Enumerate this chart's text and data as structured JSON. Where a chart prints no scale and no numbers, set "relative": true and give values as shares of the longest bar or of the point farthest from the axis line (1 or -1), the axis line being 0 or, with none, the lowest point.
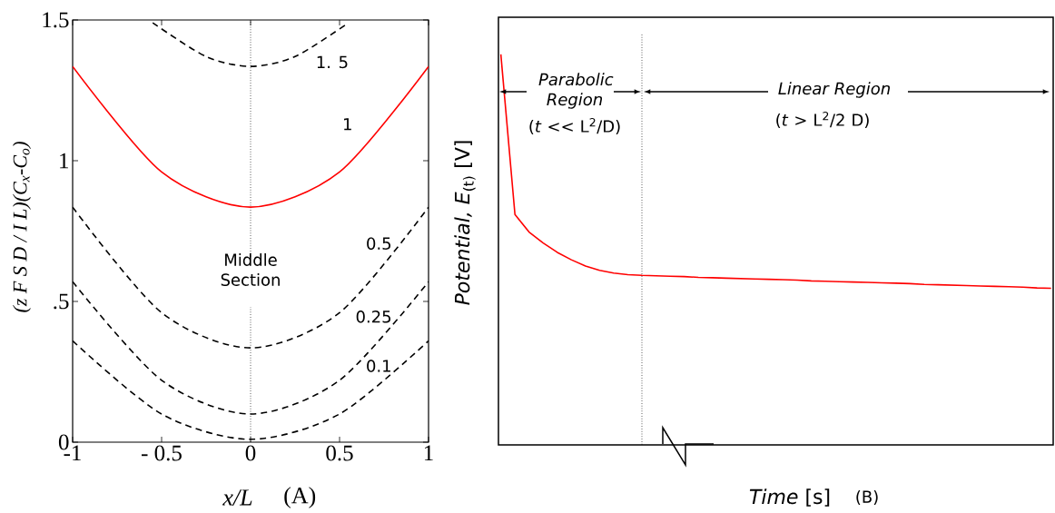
{
  "chart_data": [
    {
      "type": "line",
      "xlabel": "x/L",
      "ylabel": "(z F S D / I L)(C$_{x}$-C$_{o}$)",
      "x": [
        -1,
        -0.5,
        0,
        0.5,
        1
      ],
      "xlim": [
        -1,
        1
      ],
      "ylim": [
        0,
        1.5
      ],
      "xticks": [
        -1,
        {
          "value": -0.5,
          "label": "- 0.5"
        },
        0,
        0.5,
        1
      ],
      "yticks": [
        0,
        {
          "value": 0.5,
          "label": ".5"
        },
        1,
        1.5
      ],
      "series": [
        {
          "name": "1. 5",
          "color": "#000000",
          "line_style": "dashed",
          "x": [
            -0.55,
            -0.25,
            0,
            0.25,
            0.55
          ],
          "values": [
            1.49,
            1.37,
            1.335,
            1.37,
            1.49
          ]
        },
        {
          "name": "1",
          "color": "#ff0000",
          "line_style": "solid",
          "values": [
            1.335,
            0.96,
            0.835,
            0.96,
            1.335
          ]
        },
        {
          "name": "0.5",
          "color": "#000000",
          "line_style": "dashed",
          "values": [
            0.835,
            0.46,
            0.335,
            0.46,
            0.835
          ]
        },
        {
          "name": "0.25",
          "color": "#000000",
          "line_style": "dashed",
          "values": [
            0.57,
            0.22,
            0.1,
            0.22,
            0.57
          ]
        },
        {
          "name": "0.1",
          "color": "#000000",
          "line_style": "dashed",
          "values": [
            0.36,
            0.1,
            0.01,
            0.1,
            0.36
          ]
        }
      ],
      "annotations": [
        "Middle Section",
        "(A)"
      ]
    },
    {
      "type": "line",
      "xlabel": "*Time* [s]",
      "ylabel": "*Potential, E*$_{(t)}$ [V]",
      "relative": true,
      "categories": [
        null,
        null,
        null,
        null,
        null,
        null,
        null,
        null,
        null,
        null,
        null,
        null,
        null,
        null,
        null,
        null,
        null,
        null,
        null,
        null,
        null,
        null,
        null,
        null,
        null,
        null,
        null,
        null,
        null,
        null,
        null,
        null,
        null,
        null,
        null,
        null,
        null,
        null,
        null,
        null
      ],
      "series": [
        {
          "color": "#ff0000",
          "line_style": "solid",
          "values": [
            1.0,
            0.59,
            0.545,
            0.517,
            0.493,
            0.474,
            0.458,
            0.447,
            0.44,
            0.436,
            0.434,
            0.433,
            0.432,
            0.431,
            0.429,
            0.428,
            0.427,
            0.426,
            0.425,
            0.424,
            0.423,
            0.422,
            0.42,
            0.419,
            0.418,
            0.417,
            0.416,
            0.415,
            0.414,
            0.413,
            0.411,
            0.41,
            0.409,
            0.408,
            0.407,
            0.406,
            0.405,
            0.404,
            0.402,
            0.401
          ]
        }
      ],
      "annotations": [
        "Parabolic Region",
        "(*t* << L$^{2}$/D)",
        "Linear Region",
        "(*t* > L$^{2}$/2 D)",
        "(B)"
      ]
    }
  ]
}
